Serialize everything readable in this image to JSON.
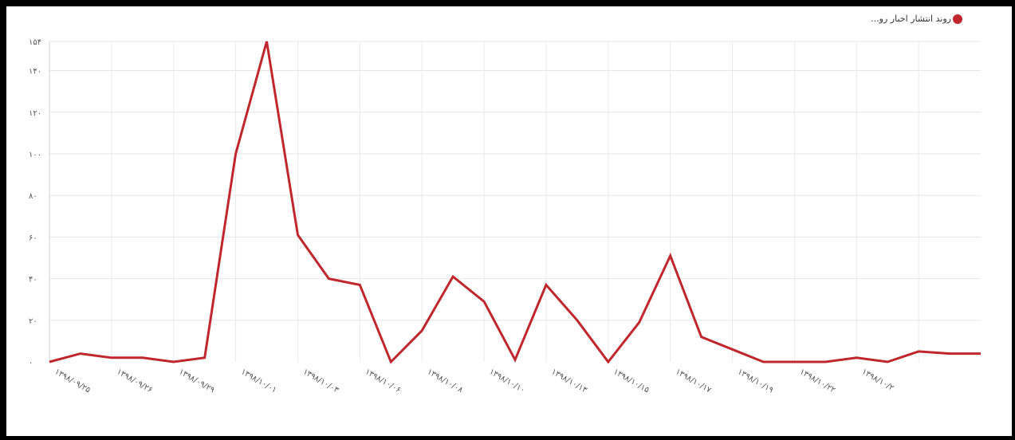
{
  "chart_data": {
    "type": "line",
    "title": "",
    "xlabel": "",
    "ylabel": "",
    "ylim": [
      0,
      154
    ],
    "y_ticks": [
      "۰",
      "۲۰",
      "۴۰",
      "۶۰",
      "۸۰",
      "۱۰۰",
      "۱۲۰",
      "۱۴۰",
      "۱۵۴"
    ],
    "y_tick_values": [
      0,
      20,
      40,
      60,
      80,
      100,
      120,
      140,
      154
    ],
    "x_tick_labels": [
      "۱۳۹۸/۰۹/۲۵",
      "۱۳۹۸/۰۹/۲۶",
      "۱۳۹۸/۰۹/۲۹",
      "۱۳۹۸/۱۰/۰۱",
      "۱۳۹۸/۱۰/۰۳",
      "۱۳۹۸/۱۰/۰۶",
      "۱۳۹۸/۱۰/۰۸",
      "۱۳۹۸/۱۰/۱۰",
      "۱۳۹۸/۱۰/۱۳",
      "۱۳۹۸/۱۰/۱۵",
      "۱۳۹۸/۱۰/۱۷",
      "۱۳۹۸/۱۰/۱۹",
      "۱۳۹۸/۱۰/۲۲",
      "۱۳۹۸/۱۰/۲"
    ],
    "grid": true,
    "legend_position": "top-right",
    "series": [
      {
        "name": "...روند انتشار اخبار رو",
        "color": "#c0272d",
        "values": [
          0,
          4,
          2,
          2,
          0,
          2,
          100,
          154,
          61,
          40,
          37,
          0,
          15,
          41,
          29,
          1,
          37,
          20,
          0,
          19,
          51,
          12,
          6,
          0,
          0,
          0,
          2,
          0,
          5,
          4,
          4
        ]
      }
    ]
  },
  "legend": {
    "label": "...روند انتشار اخبار رو",
    "color": "#c0272d"
  }
}
